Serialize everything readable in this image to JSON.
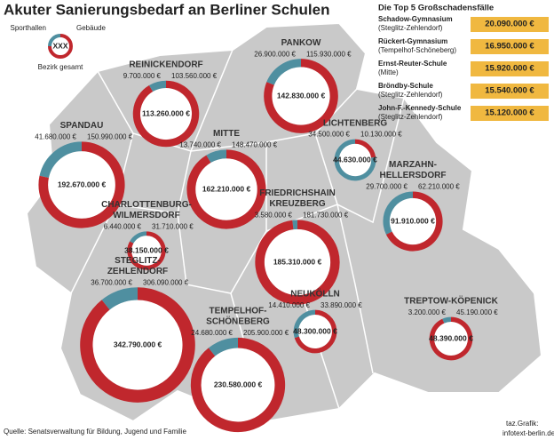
{
  "title": "Akuter Sanierungsbedarf an Berliner Schulen",
  "legend": {
    "sport": "Sporthallen",
    "gebaeude": "Gebäude",
    "sample": "XXX",
    "total": "Bezirk gesamt",
    "sport_color": "#4f8fa0",
    "gebaeude_color": "#c0272d"
  },
  "districts": [
    {
      "name": [
        "PANKOW"
      ],
      "sporthallen": {
        "value": 26900000,
        "label": "26.900.000 €"
      },
      "gebaeude": {
        "value": 115930000,
        "label": "115.930.000 €"
      },
      "total": {
        "value": 142830000,
        "label": "142.830.000 €"
      }
    },
    {
      "name": [
        "REINICKENDORF"
      ],
      "sporthallen": {
        "value": 9700000,
        "label": "9.700.000 €"
      },
      "gebaeude": {
        "value": 103560000,
        "label": "103.560.000 €"
      },
      "total": {
        "value": 113260000,
        "label": "113.260.000 €"
      }
    },
    {
      "name": [
        "LICHTENBERG"
      ],
      "sporthallen": {
        "value": 34500000,
        "label": "34.500.000 €"
      },
      "gebaeude": {
        "value": 10130000,
        "label": "10.130.000 €"
      },
      "total": {
        "value": 44630000,
        "label": "44.630.000 €"
      }
    },
    {
      "name": [
        "SPANDAU"
      ],
      "sporthallen": {
        "value": 41680000,
        "label": "41.680.000 €"
      },
      "gebaeude": {
        "value": 150990000,
        "label": "150.990.000 €"
      },
      "total": {
        "value": 192670000,
        "label": "192.670.000 €"
      }
    },
    {
      "name": [
        "MITTE"
      ],
      "sporthallen": {
        "value": 13740000,
        "label": "13.740.000 €"
      },
      "gebaeude": {
        "value": 148470000,
        "label": "148.470.000 €"
      },
      "total": {
        "value": 162210000,
        "label": "162.210.000 €"
      }
    },
    {
      "name": [
        "MARZAHN-",
        "HELLERSDORF"
      ],
      "sporthallen": {
        "value": 29700000,
        "label": "29.700.000 €"
      },
      "gebaeude": {
        "value": 62210000,
        "label": "62.210.000 €"
      },
      "total": {
        "value": 91910000,
        "label": "91.910.000 €"
      }
    },
    {
      "name": [
        "CHARLOTTENBURG-",
        "WILMERSDORF"
      ],
      "sporthallen": {
        "value": 6440000,
        "label": "6.440.000 €"
      },
      "gebaeude": {
        "value": 31710000,
        "label": "31.710.000 €"
      },
      "total": {
        "value": 38150000,
        "label": "38.150.000 €"
      }
    },
    {
      "name": [
        "FRIEDRICHSHAIN",
        "KREUZBERG"
      ],
      "sporthallen": {
        "value": 3580000,
        "label": "3.580.000 €"
      },
      "gebaeude": {
        "value": 181730000,
        "label": "181.730.000 €"
      },
      "total": {
        "value": 185310000,
        "label": "185.310.000 €"
      }
    },
    {
      "name": [
        "STEGLITZ-",
        "ZEHLENDORF"
      ],
      "sporthallen": {
        "value": 36700000,
        "label": "36.700.000 €"
      },
      "gebaeude": {
        "value": 306090000,
        "label": "306.090.000 €"
      },
      "total": {
        "value": 342790000,
        "label": "342.790.000 €"
      }
    },
    {
      "name": [
        "NEUKÖLLN"
      ],
      "sporthallen": {
        "value": 14410000,
        "label": "14.410.000 €"
      },
      "gebaeude": {
        "value": 33890000,
        "label": "33.890.000 €"
      },
      "total": {
        "value": 48300000,
        "label": "48.300.000 €"
      }
    },
    {
      "name": [
        "TEMPELHOF-",
        "SCHÖNEBERG"
      ],
      "sporthallen": {
        "value": 24680000,
        "label": "24.680.000 €"
      },
      "gebaeude": {
        "value": 205900000,
        "label": "205.900.000 €"
      },
      "total": {
        "value": 230580000,
        "label": "230.580.000 €"
      }
    },
    {
      "name": [
        "TREPTOW-KÖPENICK"
      ],
      "sporthallen": {
        "value": 3200000,
        "label": "3.200.000 €"
      },
      "gebaeude": {
        "value": 45190000,
        "label": "45.190.000 €"
      },
      "total": {
        "value": 48390000,
        "label": "48.390.000 €"
      }
    }
  ],
  "top5": {
    "title": "Die Top 5 Großschadensfälle",
    "color": "#f0b840",
    "rows": [
      {
        "name": "Schadow-Gymnasium",
        "district": "(Steglitz-Zehlendorf)",
        "amount": "20.090.000 €"
      },
      {
        "name": "Rückert-Gymnasium",
        "district": "(Tempelhof-Schöneberg)",
        "amount": "16.950.000 €"
      },
      {
        "name": "Ernst-Reuter-Schule",
        "district": "(Mitte)",
        "amount": "15.920.000 €"
      },
      {
        "name": "Bröndby-Schule",
        "district": "(Steglitz-Zehlendorf)",
        "amount": "15.540.000 €"
      },
      {
        "name": "John-F.-Kennedy-Schule",
        "district": "(Steglitz-Zehlendorf)",
        "amount": "15.120.000 €"
      }
    ]
  },
  "source": "Quelle: Senatsverwaltung für Bildung, Jugend und Familie",
  "credit": [
    "taz.Grafik:",
    "infotext-berlin.de"
  ]
}
